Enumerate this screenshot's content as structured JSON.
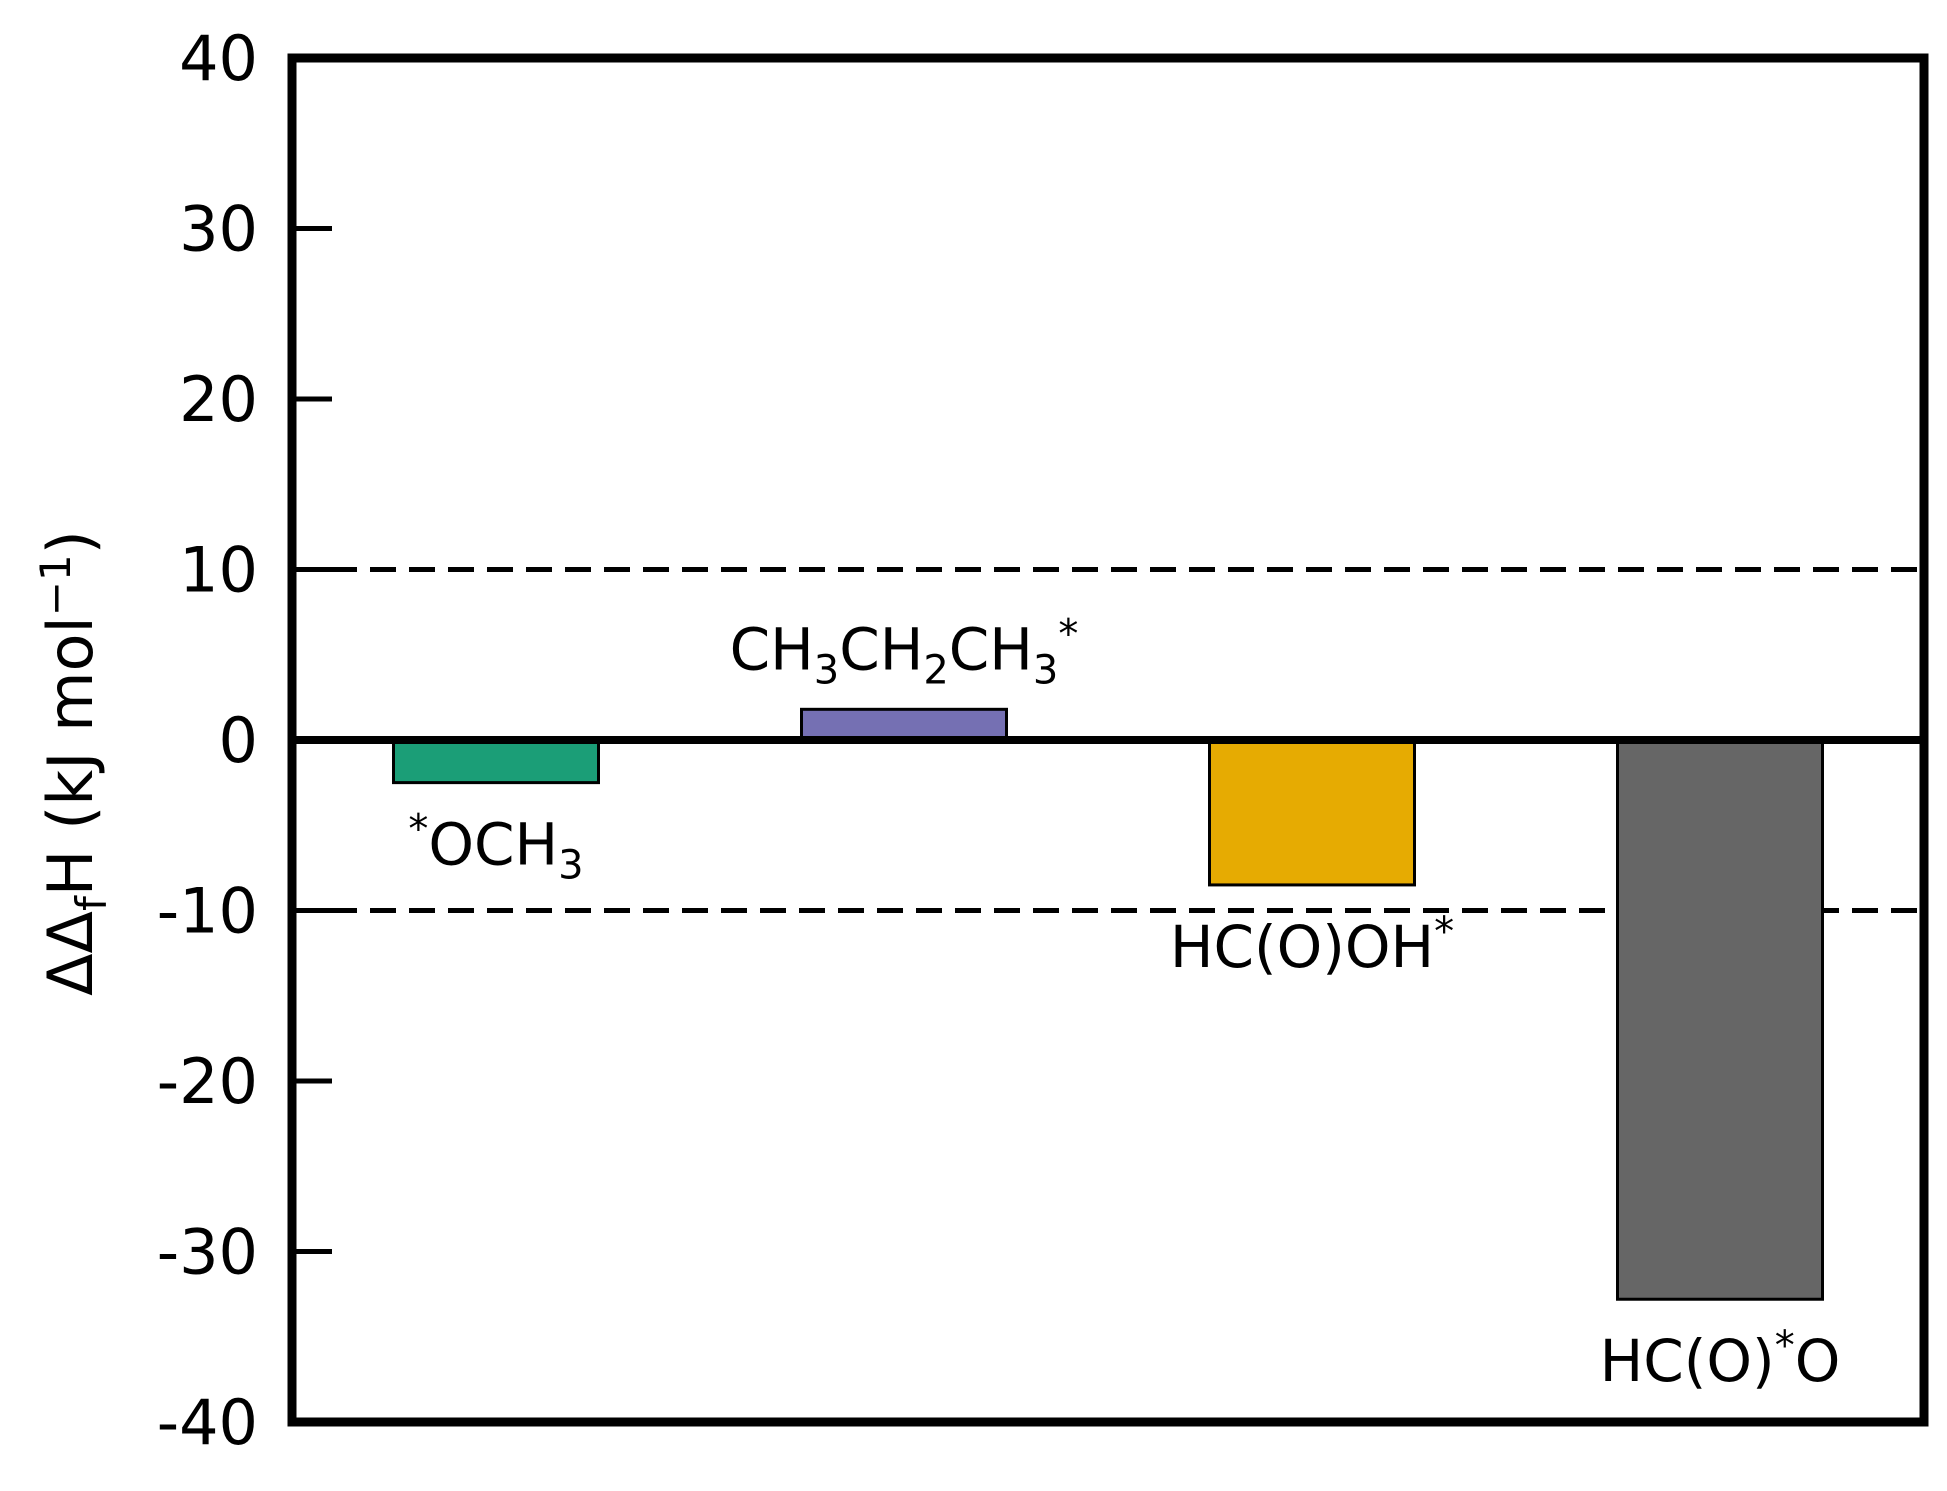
{
  "chart_data": {
    "type": "bar",
    "categories": [
      "*OCH3",
      "CH3CH2CH3*",
      "HC(O)OH*",
      "HC(O)*O"
    ],
    "values": [
      -2.5,
      1.8,
      -8.5,
      -32.8
    ],
    "colors": [
      "#1b9e77",
      "#7570b3",
      "#e6ab02",
      "#666666"
    ],
    "ylabel": "ΔΔfH (kJ mol−1)",
    "ylim": [
      -40,
      40
    ],
    "yticks": [
      -40,
      -30,
      -20,
      -10,
      0,
      10,
      20,
      30,
      40
    ],
    "ytick_labels": [
      "-40",
      "-30",
      "-20",
      "-10",
      "0",
      "10",
      "20",
      "30",
      "40"
    ],
    "reference_lines": [
      {
        "y": 10,
        "style": "dashed"
      },
      {
        "y": -10,
        "style": "dashed"
      },
      {
        "y": 0,
        "style": "solid"
      }
    ],
    "bar_labels": [
      {
        "parts": [
          {
            "t": "*",
            "k": "sup"
          },
          {
            "t": "OCH",
            "k": "n"
          },
          {
            "t": "3",
            "k": "sub"
          }
        ]
      },
      {
        "parts": [
          {
            "t": "CH",
            "k": "n"
          },
          {
            "t": "3",
            "k": "sub"
          },
          {
            "t": "CH",
            "k": "n"
          },
          {
            "t": "2",
            "k": "sub"
          },
          {
            "t": "CH",
            "k": "n"
          },
          {
            "t": "3",
            "k": "sub"
          },
          {
            "t": "*",
            "k": "sup"
          }
        ]
      },
      {
        "parts": [
          {
            "t": "HC(O)OH",
            "k": "n"
          },
          {
            "t": "*",
            "k": "sup"
          }
        ]
      },
      {
        "parts": [
          {
            "t": "HC(O)",
            "k": "n"
          },
          {
            "t": "*",
            "k": "sup"
          },
          {
            "t": "O",
            "k": "n"
          }
        ]
      }
    ],
    "ylabel_parts": [
      {
        "t": "ΔΔ",
        "k": "n"
      },
      {
        "t": "f",
        "k": "sub"
      },
      {
        "t": "H (kJ mol",
        "k": "n"
      },
      {
        "t": "−1",
        "k": "sup"
      },
      {
        "t": ")",
        "k": "n"
      }
    ],
    "grid": false,
    "legend": "none"
  }
}
